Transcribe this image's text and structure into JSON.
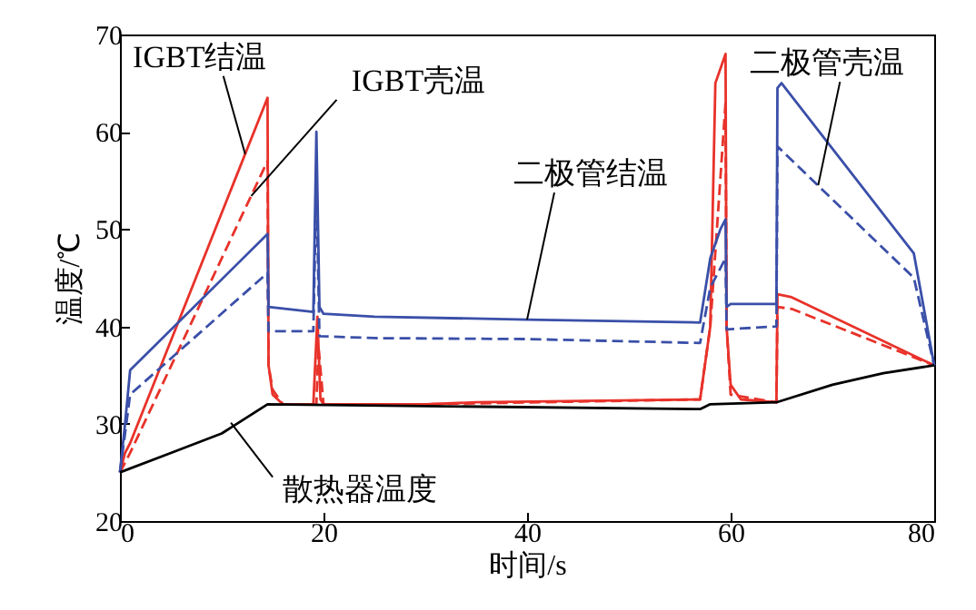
{
  "chart_data": {
    "type": "line",
    "xlabel": "时间/s",
    "ylabel": "温度/℃",
    "xlim": [
      0,
      80
    ],
    "ylim": [
      20,
      70
    ],
    "xticks": [
      0,
      20,
      40,
      60,
      80
    ],
    "yticks": [
      20,
      30,
      40,
      50,
      60,
      70
    ],
    "grid": false,
    "marker": "none",
    "series": [
      {
        "color": "#e8322a",
        "line_style": "solid",
        "x": [
          0,
          0.5,
          1,
          14.5,
          14.6,
          15,
          16,
          19,
          19.4,
          19.7,
          20,
          30,
          35,
          57,
          58,
          58.5,
          59.5,
          59.6,
          60,
          61,
          64.5,
          64.6,
          66,
          80
        ],
        "values": [
          25,
          27,
          28,
          63.5,
          36,
          33,
          32,
          32,
          41,
          32.5,
          32,
          32,
          32.2,
          32.5,
          40,
          65,
          68,
          40,
          34,
          32.5,
          32.2,
          43.3,
          43,
          36
        ]
      },
      {
        "color": "#e8322a",
        "line_style": "dashed",
        "x": [
          0,
          1,
          14.5,
          14.6,
          15,
          16,
          19.3,
          19.5,
          20,
          30,
          57,
          58,
          59.5,
          59.6,
          60,
          64.5,
          64.6,
          66,
          80
        ],
        "values": [
          25,
          27,
          57,
          36,
          33.5,
          32,
          32,
          38,
          32,
          32,
          32.5,
          40,
          63,
          40,
          33,
          32.2,
          42,
          41.8,
          36
        ]
      },
      {
        "color": "#3a4fa8",
        "line_style": "solid",
        "x": [
          0,
          0.5,
          1,
          14.5,
          14.6,
          19,
          19.3,
          19.6,
          20,
          25,
          40,
          57,
          58,
          59,
          59.5,
          59.6,
          60,
          64.5,
          64.6,
          65,
          78,
          80
        ],
        "values": [
          25,
          30,
          35.5,
          49.5,
          42,
          41.5,
          60,
          42,
          41.3,
          41,
          40.7,
          40.4,
          47,
          50,
          51,
          42,
          42.3,
          42.3,
          64.5,
          65,
          47.5,
          36
        ]
      },
      {
        "color": "#3a4fa8",
        "line_style": "dashed",
        "x": [
          0,
          1,
          14.5,
          14.6,
          19,
          19.3,
          19.6,
          25,
          40,
          57,
          58,
          59.5,
          59.6,
          64.5,
          64.6,
          78,
          80
        ],
        "values": [
          25,
          33,
          45.5,
          39.5,
          39.5,
          55,
          39,
          38.8,
          38.7,
          38.3,
          44,
          47,
          39.7,
          40,
          58.5,
          45,
          36
        ]
      },
      {
        "color": "#000000",
        "line_style": "solid",
        "x": [
          0,
          5,
          10,
          14.5,
          57,
          58,
          64.5,
          70,
          75,
          80
        ],
        "values": [
          25,
          27,
          29,
          32,
          31.5,
          32,
          32.2,
          34,
          35.2,
          36
        ]
      }
    ],
    "annotations": [
      {
        "text": "IGBT结温",
        "x": 12.3,
        "y": 57.7
      },
      {
        "text": "IGBT壳温",
        "x": 12.9,
        "y": 53.4
      },
      {
        "text": "二极管结温",
        "x": 40,
        "y": 40.7
      },
      {
        "text": "二极管壳温",
        "x": 68.6,
        "y": 54.5
      },
      {
        "text": "散热器温度",
        "x": 10.9,
        "y": 30.1
      }
    ]
  }
}
